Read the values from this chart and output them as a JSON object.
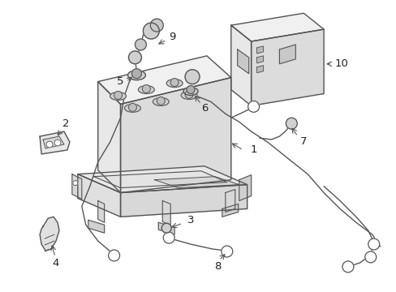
{
  "background_color": "#ffffff",
  "line_color": "#555555",
  "line_width": 1.0,
  "figsize": [
    4.89,
    3.6
  ],
  "dpi": 100
}
